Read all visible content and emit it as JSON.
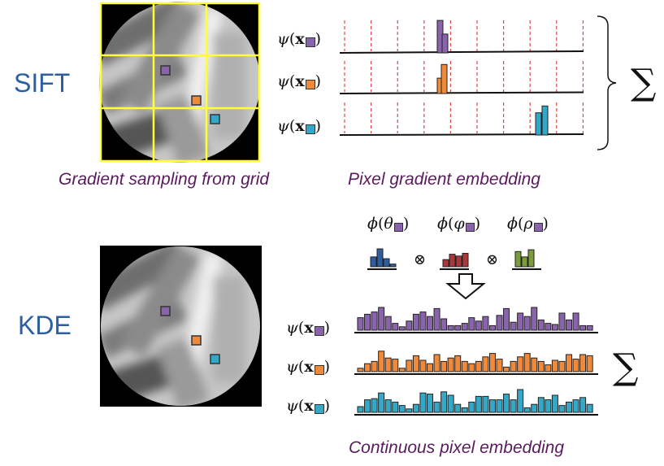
{
  "colors": {
    "purple": "#8a63ad",
    "orange": "#f0893a",
    "cyan": "#36a8c7",
    "blue_hist": "#2d5fa0",
    "red_hist": "#a8383b",
    "green_hist": "#7a9c3a",
    "caption": "#5a1a5e",
    "method": "#2d5fa0"
  },
  "sift": {
    "label": "SIFT",
    "caption_left": "Gradient sampling from grid",
    "caption_right": "Pixel gradient embedding",
    "rows": [
      {
        "psi": "ψ",
        "x": "x",
        "color": "purple",
        "bars": [
          {
            "bin": 12.0,
            "h": 0.95
          },
          {
            "bin": 12.6,
            "h": 0.55
          }
        ]
      },
      {
        "psi": "ψ",
        "x": "x",
        "color": "orange",
        "bars": [
          {
            "bin": 12.0,
            "h": 0.45
          },
          {
            "bin": 12.5,
            "h": 0.85
          }
        ]
      },
      {
        "psi": "ψ",
        "x": "x",
        "color": "cyan",
        "bars": [
          {
            "bin": 24.1,
            "h": 0.65
          },
          {
            "bin": 24.9,
            "h": 0.85
          }
        ]
      }
    ],
    "sum": "∑"
  },
  "kde": {
    "label": "KDE",
    "caption": "Continuous pixel embedding",
    "factors": [
      {
        "phi": "ϕ",
        "var": "θ",
        "hist_color": "blue_hist",
        "bars": [
          0.55,
          1.0,
          0.45,
          0.15
        ]
      },
      {
        "phi": "ϕ",
        "var": "φ",
        "hist_color": "red_hist",
        "bars": [
          0.4,
          0.7,
          0.6,
          0.75
        ]
      },
      {
        "phi": "ϕ",
        "var": "ρ",
        "hist_color": "green_hist",
        "bars": [
          0.85,
          0.55,
          0.95,
          0.0
        ]
      }
    ],
    "otimes": "⊗",
    "rows": [
      {
        "psi": "ψ",
        "x": "x",
        "color": "purple",
        "bars": [
          0.55,
          0.7,
          0.8,
          1.0,
          0.6,
          0.3,
          0.15,
          0.4,
          0.7,
          0.8,
          0.6,
          0.95,
          0.5,
          0.2,
          0.2,
          0.3,
          0.55,
          0.4,
          0.6,
          0.2,
          0.65,
          0.95,
          0.35,
          0.75,
          0.6,
          1.0,
          0.45,
          0.3,
          0.25,
          0.75,
          0.45,
          0.75,
          0.2,
          0.2
        ]
      },
      {
        "psi": "ψ",
        "x": "x",
        "color": "orange",
        "bars": [
          0.15,
          0.35,
          0.45,
          0.9,
          0.6,
          0.55,
          0.15,
          0.5,
          0.7,
          0.5,
          0.35,
          0.75,
          0.45,
          0.6,
          0.7,
          0.45,
          0.35,
          0.45,
          0.65,
          0.8,
          0.55,
          0.2,
          0.45,
          0.65,
          0.8,
          0.6,
          0.45,
          0.3,
          0.5,
          0.45,
          0.75,
          0.55,
          0.75,
          0.7
        ]
      },
      {
        "psi": "ψ",
        "x": "x",
        "color": "cyan",
        "bars": [
          0.25,
          0.55,
          0.6,
          0.85,
          0.55,
          0.45,
          0.3,
          0.15,
          0.35,
          0.85,
          0.8,
          0.45,
          0.9,
          0.75,
          0.35,
          0.2,
          0.45,
          0.7,
          0.7,
          0.55,
          0.55,
          0.8,
          0.55,
          1.0,
          0.2,
          0.35,
          0.65,
          0.55,
          0.75,
          0.3,
          0.45,
          0.55,
          0.65,
          0.35
        ]
      }
    ],
    "sum": "∑"
  }
}
